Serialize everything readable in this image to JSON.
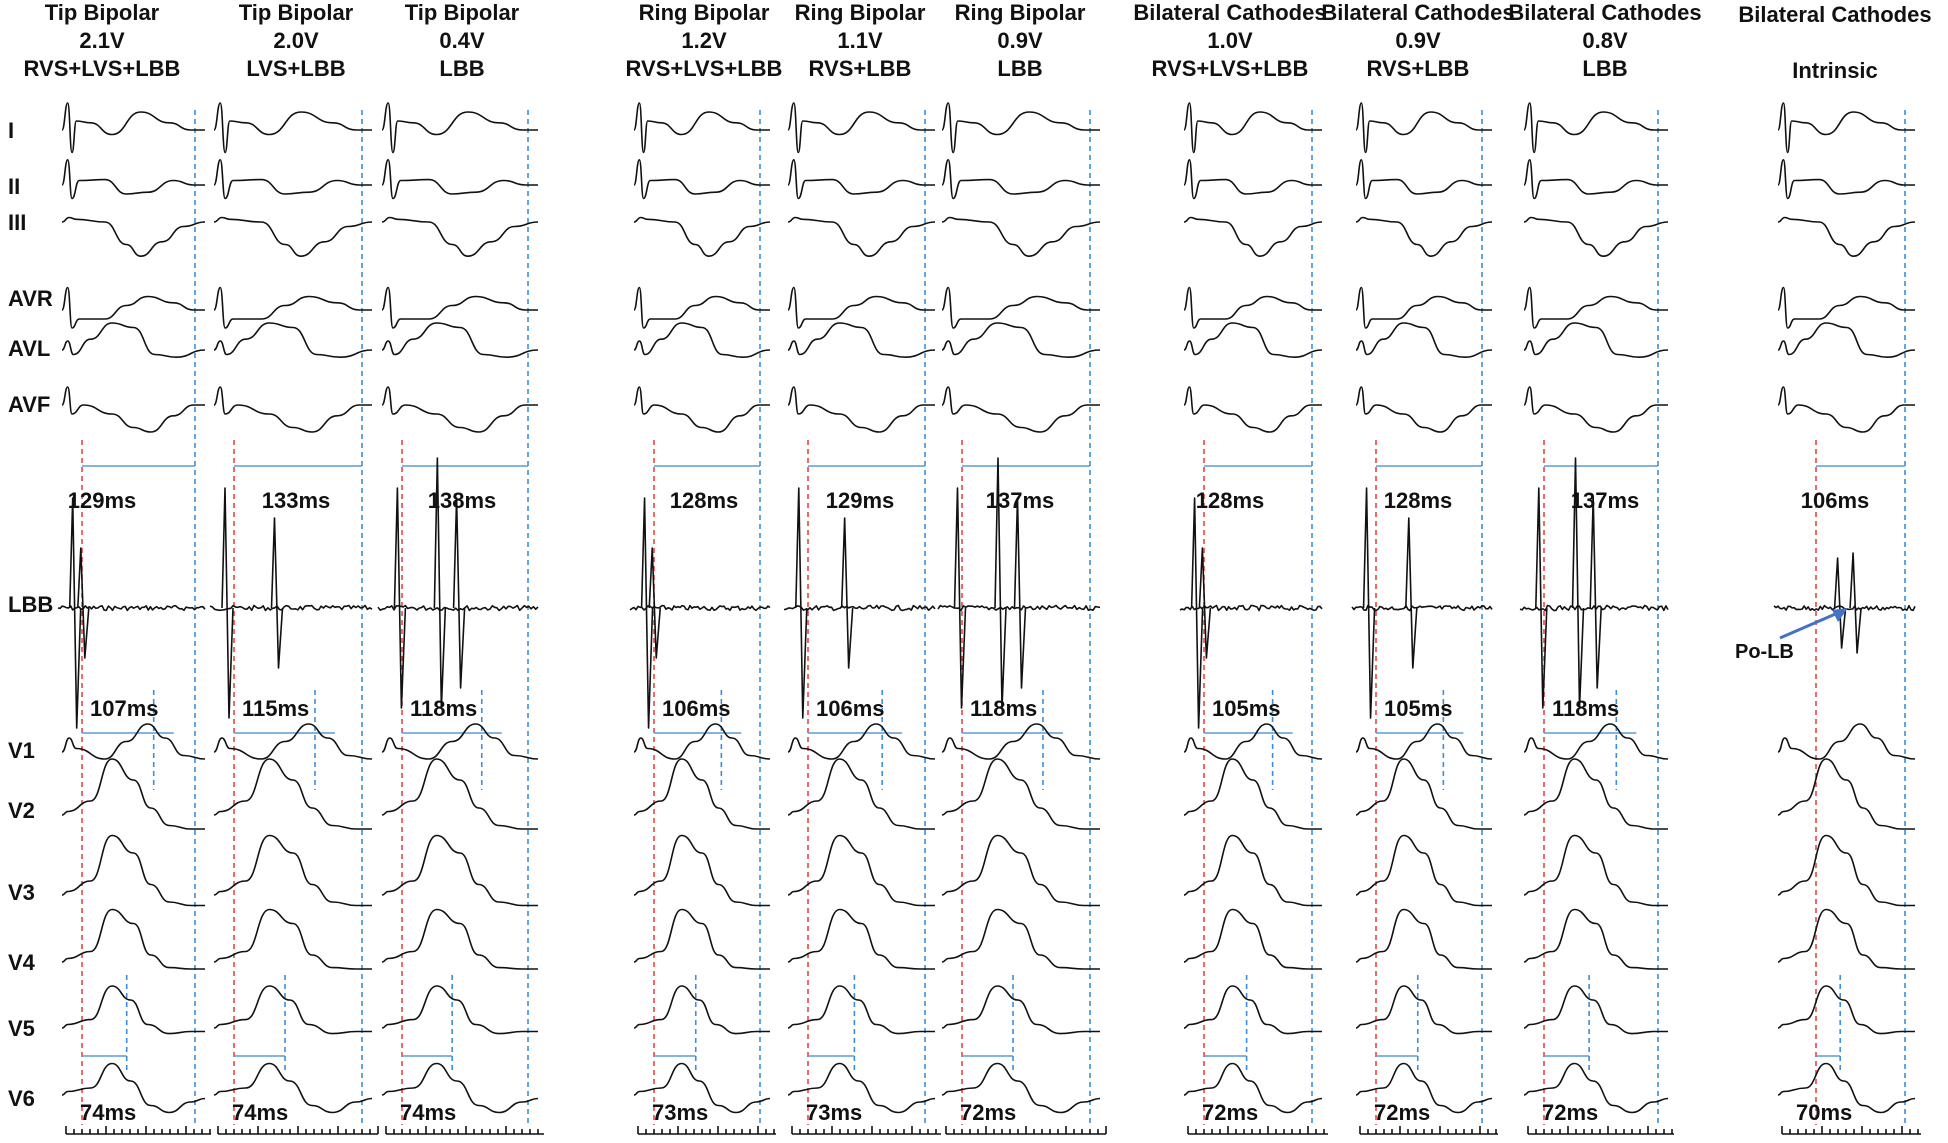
{
  "columns": [
    {
      "title": "Tip Bipolar",
      "voltage": "2.1V",
      "capture": "RVS+LVS+LBB",
      "lbb_interval": "129ms",
      "v1_interval": "107ms",
      "v6_interval": "74ms"
    },
    {
      "title": "Tip Bipolar",
      "voltage": "2.0V",
      "capture": "LVS+LBB",
      "lbb_interval": "133ms",
      "v1_interval": "115ms",
      "v6_interval": "74ms"
    },
    {
      "title": "Tip Bipolar",
      "voltage": "0.4V",
      "capture": "LBB",
      "lbb_interval": "138ms",
      "v1_interval": "118ms",
      "v6_interval": "74ms"
    },
    {
      "title": "Ring Bipolar",
      "voltage": "1.2V",
      "capture": "RVS+LVS+LBB",
      "lbb_interval": "128ms",
      "v1_interval": "106ms",
      "v6_interval": "73ms"
    },
    {
      "title": "Ring Bipolar",
      "voltage": "1.1V",
      "capture": "RVS+LBB",
      "lbb_interval": "129ms",
      "v1_interval": "106ms",
      "v6_interval": "73ms"
    },
    {
      "title": "Ring Bipolar",
      "voltage": "0.9V",
      "capture": "LBB",
      "lbb_interval": "137ms",
      "v1_interval": "118ms",
      "v6_interval": "72ms"
    },
    {
      "title": "Bilateral Cathodes",
      "voltage": "1.0V",
      "capture": "RVS+LVS+LBB",
      "lbb_interval": "128ms",
      "v1_interval": "105ms",
      "v6_interval": "72ms"
    },
    {
      "title": "Bilateral Cathodes",
      "voltage": "0.9V",
      "capture": "RVS+LBB",
      "lbb_interval": "128ms",
      "v1_interval": "105ms",
      "v6_interval": "72ms"
    },
    {
      "title": "Bilateral Cathodes",
      "voltage": "0.8V",
      "capture": "LBB",
      "lbb_interval": "137ms",
      "v1_interval": "118ms",
      "v6_interval": "72ms"
    },
    {
      "title": "Bilateral Cathodes",
      "voltage": "",
      "capture": "Intrinsic",
      "lbb_interval": "106ms",
      "v1_interval": "",
      "v6_interval": "70ms"
    }
  ],
  "leads": [
    "I",
    "II",
    "III",
    "AVR",
    "AVL",
    "AVF",
    "LBB",
    "V1",
    "V2",
    "V3",
    "V4",
    "V5",
    "V6"
  ],
  "annotation": "Po-LB",
  "colors": {
    "trace": "#111111",
    "pacing_marker": "#e8473f",
    "end_marker": "#3b8fd9",
    "arrow": "#4472c4"
  }
}
